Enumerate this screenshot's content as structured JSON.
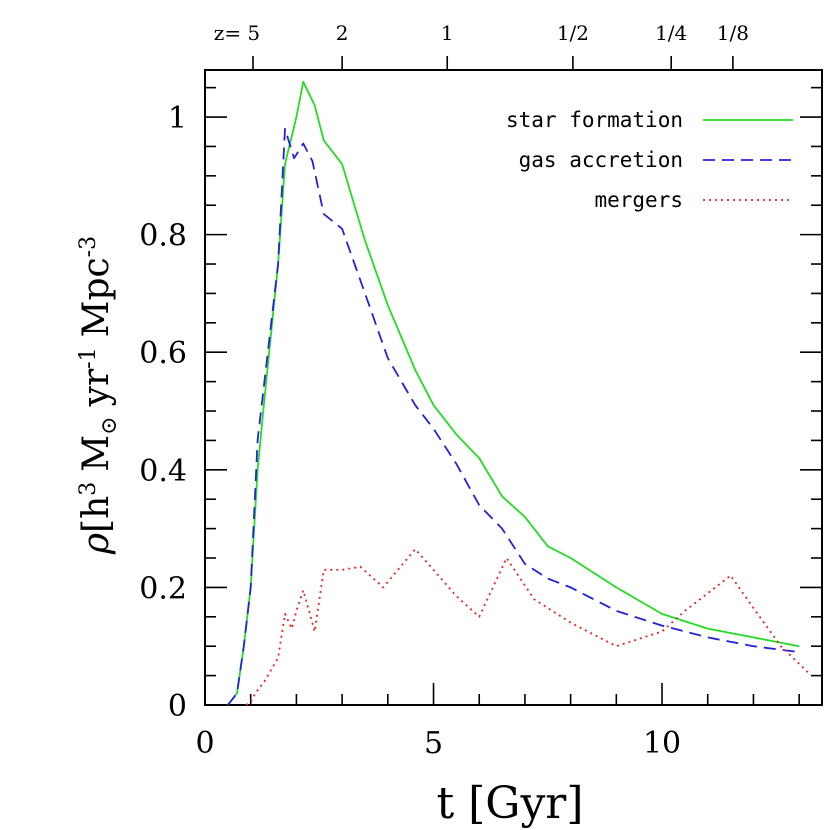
{
  "chart_data": {
    "type": "line",
    "xlabel": "t [Gyr]",
    "ylabel": {
      "rho": "ρ",
      "bracket_open": "[",
      "h": "h",
      "h_exp": "3",
      "msun": "M",
      "msun_sub": "⊙",
      "yr": "yr",
      "yr_exp": "-1",
      "mpc": "Mpc",
      "mpc_exp": "-3"
    },
    "xlim": [
      0,
      13.5
    ],
    "ylim": [
      0,
      1.08
    ],
    "x_ticks": [
      {
        "value": 0,
        "label": "0"
      },
      {
        "value": 5,
        "label": "5"
      },
      {
        "value": 10,
        "label": "10"
      }
    ],
    "y_ticks": [
      {
        "value": 0,
        "label": "0"
      },
      {
        "value": 0.2,
        "label": "0.2"
      },
      {
        "value": 0.4,
        "label": "0.4"
      },
      {
        "value": 0.6,
        "label": "0.6"
      },
      {
        "value": 0.8,
        "label": "0.8"
      },
      {
        "value": 1.0,
        "label": "1"
      }
    ],
    "top_axis": {
      "ticks": [
        {
          "t": 1.05,
          "label": "z= 5"
        },
        {
          "t": 3.0,
          "label": "2"
        },
        {
          "t": 5.3,
          "label": "1"
        },
        {
          "t": 8.05,
          "label": "1/2"
        },
        {
          "t": 10.2,
          "label": "1/4"
        },
        {
          "t": 11.55,
          "label": "1/8"
        }
      ]
    },
    "legend_placement": "top-right",
    "grid": false,
    "series": [
      {
        "name": "star formation",
        "color": "#22dd22",
        "dash": "solid",
        "x": [
          0.5,
          0.7,
          0.85,
          1.0,
          1.15,
          1.3,
          1.6,
          1.75,
          2.0,
          2.15,
          2.4,
          2.6,
          3.0,
          3.5,
          4.0,
          4.6,
          5.0,
          5.5,
          6.0,
          6.5,
          7.0,
          7.5,
          8.0,
          9.0,
          10.0,
          11.0,
          12.0,
          13.0
        ],
        "y": [
          0.0,
          0.02,
          0.1,
          0.2,
          0.4,
          0.52,
          0.75,
          0.92,
          1.0,
          1.06,
          1.02,
          0.96,
          0.92,
          0.79,
          0.68,
          0.57,
          0.51,
          0.46,
          0.42,
          0.355,
          0.32,
          0.27,
          0.25,
          0.2,
          0.155,
          0.13,
          0.115,
          0.1
        ]
      },
      {
        "name": "gas accretion",
        "color": "#2222dd",
        "dash": "dashed",
        "x": [
          0.5,
          0.7,
          0.85,
          1.0,
          1.15,
          1.3,
          1.6,
          1.75,
          1.95,
          2.15,
          2.35,
          2.6,
          3.0,
          3.5,
          4.0,
          4.6,
          5.0,
          5.5,
          6.0,
          6.5,
          7.0,
          7.5,
          8.0,
          9.0,
          10.0,
          11.0,
          12.0,
          13.0
        ],
        "y": [
          0.0,
          0.02,
          0.1,
          0.2,
          0.45,
          0.55,
          0.75,
          0.98,
          0.93,
          0.955,
          0.925,
          0.835,
          0.81,
          0.7,
          0.59,
          0.51,
          0.47,
          0.41,
          0.34,
          0.3,
          0.24,
          0.215,
          0.2,
          0.16,
          0.135,
          0.115,
          0.1,
          0.09
        ]
      },
      {
        "name": "mergers",
        "color": "#ee2222",
        "dash": "dotted",
        "x": [
          0.9,
          1.0,
          1.1,
          1.3,
          1.6,
          1.75,
          1.9,
          2.0,
          2.15,
          2.4,
          2.6,
          3.0,
          3.4,
          3.9,
          4.6,
          5.0,
          5.5,
          6.0,
          6.6,
          7.2,
          8.0,
          9.0,
          10.0,
          10.5,
          11.5,
          12.0,
          12.6,
          13.2
        ],
        "y": [
          0.0,
          0.005,
          0.02,
          0.04,
          0.08,
          0.155,
          0.13,
          0.16,
          0.195,
          0.125,
          0.23,
          0.23,
          0.235,
          0.2,
          0.265,
          0.23,
          0.185,
          0.15,
          0.25,
          0.18,
          0.14,
          0.1,
          0.125,
          0.16,
          0.22,
          0.165,
          0.1,
          0.055
        ]
      }
    ]
  }
}
